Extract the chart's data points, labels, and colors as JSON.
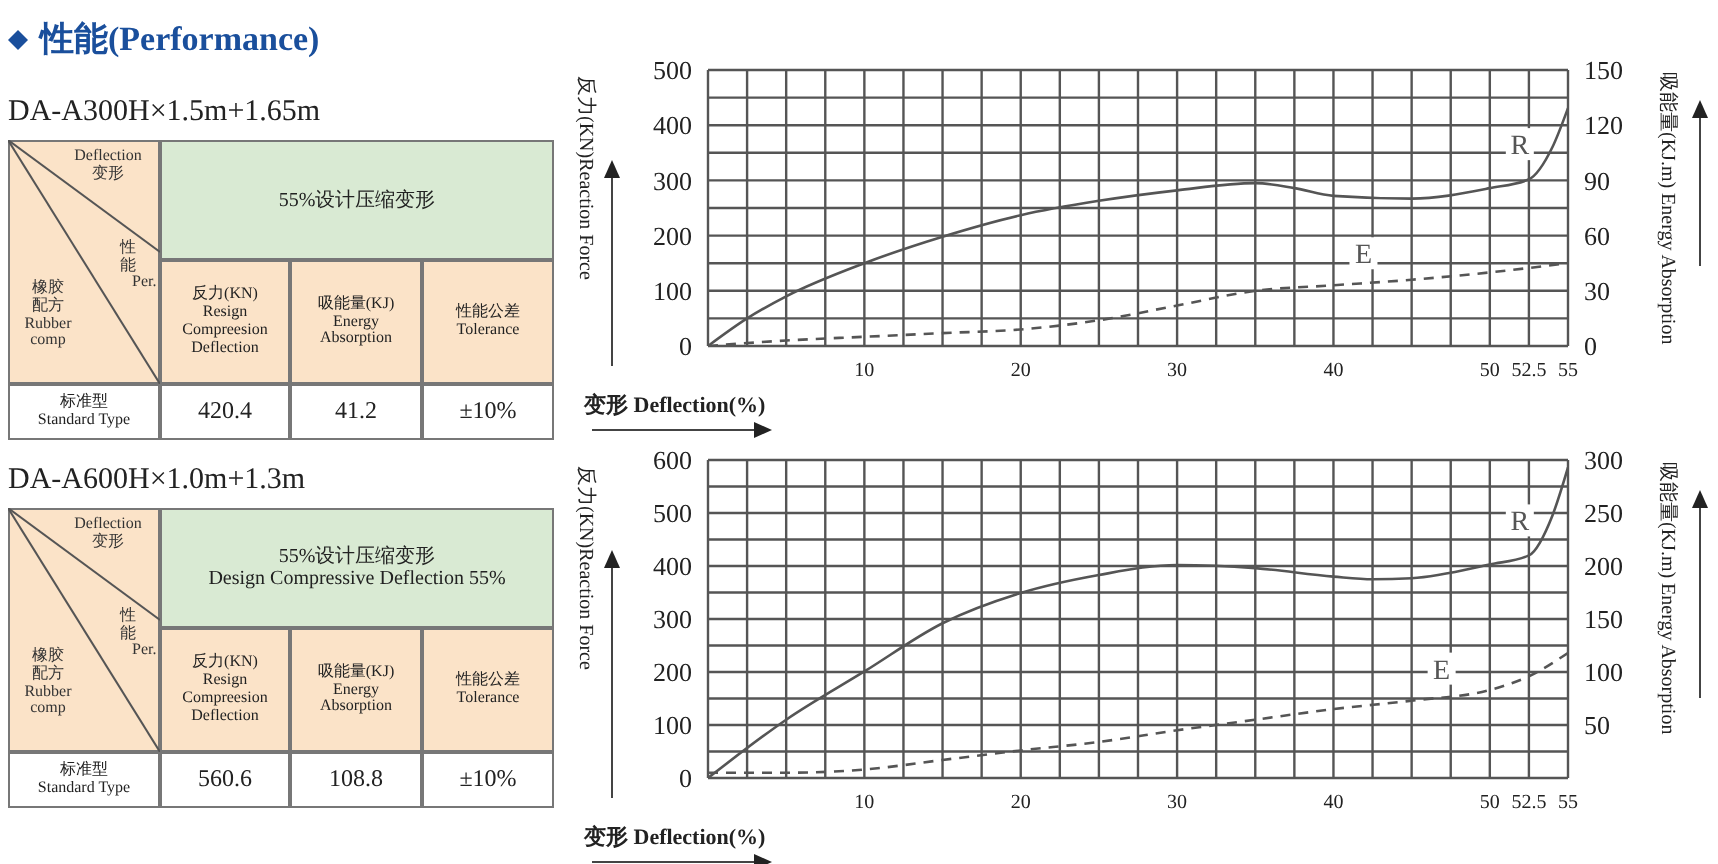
{
  "chart_data": [
    {
      "type": "other",
      "title": "性能(Performance)",
      "subtitle": "DA-A300H×1.5m+1.65m",
      "annotations": [
        "Deflection\n变形",
        "性能",
        "Per.",
        "橡胶配方\nRubber\ncomp",
        "55%设计压缩变形",
        "反力(KN)\nResign\nCompreesion\nDeflection",
        "吸能量(KJ)\nEnergy\nAbsorption",
        "性能公差\nTolerance",
        "标准型\nStandard Type",
        "420.4",
        "41.2",
        "±10%"
      ]
    },
    {
      "type": "line",
      "xlabel": "变形 Deflection(%)",
      "ylabel": "反力(KN)Reaction Force",
      "y2label": "吸能量(KJ.m)  Energy Absorption",
      "xlim": [
        0,
        55
      ],
      "xticks": [
        {
          "value": 0,
          "label": null
        },
        {
          "value": 2.5,
          "label": null
        },
        {
          "value": 5,
          "label": null
        },
        {
          "value": 7.5,
          "label": null
        },
        10,
        {
          "value": 12.5,
          "label": null
        },
        {
          "value": 15,
          "label": null
        },
        {
          "value": 17.5,
          "label": null
        },
        20,
        {
          "value": 22.5,
          "label": null
        },
        {
          "value": 25,
          "label": null
        },
        {
          "value": 27.5,
          "label": null
        },
        30,
        {
          "value": 32.5,
          "label": null
        },
        {
          "value": 35,
          "label": null
        },
        {
          "value": 37.5,
          "label": null
        },
        40,
        {
          "value": 42.5,
          "label": null
        },
        {
          "value": 45,
          "label": null
        },
        {
          "value": 47.5,
          "label": null
        },
        50,
        52.5,
        55
      ],
      "ylim": [
        0,
        500
      ],
      "yticks": [
        0,
        {
          "value": 50,
          "label": null
        },
        100,
        {
          "value": 150,
          "label": null
        },
        200,
        {
          "value": 250,
          "label": null
        },
        300,
        {
          "value": 350,
          "label": null
        },
        400,
        {
          "value": 450,
          "label": null
        },
        500
      ],
      "y2lim": [
        0,
        150
      ],
      "y2ticks": [
        0,
        30,
        60,
        90,
        120,
        150
      ],
      "grid": true,
      "series": [
        {
          "name": "R",
          "type": "line",
          "color": "#555555",
          "line_style": "solid",
          "x": [
            0,
            2.5,
            5,
            10,
            15,
            20,
            25,
            30,
            35,
            37.5,
            40,
            45,
            50,
            52.5,
            54,
            55
          ],
          "values": [
            0,
            50,
            90,
            150,
            198,
            237,
            263,
            282,
            295,
            286,
            272,
            267,
            286,
            302,
            360,
            431
          ]
        },
        {
          "name": "E",
          "type": "line",
          "axis": "y2",
          "color": "#555555",
          "line_style": "dashed",
          "x": [
            0,
            5,
            10,
            15,
            20,
            25,
            30,
            35,
            40,
            45,
            50,
            55
          ],
          "values": [
            0,
            3,
            5,
            7,
            9,
            14,
            22,
            30,
            33,
            36,
            40,
            45
          ]
        }
      ]
    },
    {
      "type": "other",
      "subtitle": "DA-A600H×1.0m+1.3m",
      "annotations": [
        "Deflection\n变形",
        "性能",
        "Per.",
        "橡胶配方\nRubber\ncomp",
        "55%设计压缩变形\nDesign Compressive Deflection 55%",
        "反力(KN)\nResign\nCompreesion\nDeflection",
        "吸能量(KJ)\nEnergy\nAbsorption",
        "性能公差\nTolerance",
        "标准型\nStandard Type",
        "560.6",
        "108.8",
        "±10%"
      ]
    },
    {
      "type": "line",
      "xlabel": "变形 Deflection(%)",
      "ylabel": "反力(KN)Reaction Force",
      "y2label": "吸能量(KJ.m)  Energy Absorption",
      "xlim": [
        0,
        55
      ],
      "xticks": [
        {
          "value": 0,
          "label": null
        },
        {
          "value": 2.5,
          "label": null
        },
        {
          "value": 5,
          "label": null
        },
        {
          "value": 7.5,
          "label": null
        },
        10,
        {
          "value": 12.5,
          "label": null
        },
        {
          "value": 15,
          "label": null
        },
        {
          "value": 17.5,
          "label": null
        },
        20,
        {
          "value": 22.5,
          "label": null
        },
        {
          "value": 25,
          "label": null
        },
        {
          "value": 27.5,
          "label": null
        },
        30,
        {
          "value": 32.5,
          "label": null
        },
        {
          "value": 35,
          "label": null
        },
        {
          "value": 37.5,
          "label": null
        },
        40,
        {
          "value": 42.5,
          "label": null
        },
        {
          "value": 45,
          "label": null
        },
        {
          "value": 47.5,
          "label": null
        },
        50,
        52.5,
        55
      ],
      "ylim": [
        0,
        600
      ],
      "yticks": [
        0,
        {
          "value": 50,
          "label": null
        },
        100,
        {
          "value": 150,
          "label": null
        },
        200,
        {
          "value": 250,
          "label": null
        },
        300,
        {
          "value": 350,
          "label": null
        },
        400,
        {
          "value": 450,
          "label": null
        },
        500,
        {
          "value": 550,
          "label": null
        },
        600
      ],
      "y2lim": [
        0,
        300
      ],
      "y2ticks": [
        {
          "value": 0,
          "label": null
        },
        50,
        100,
        150,
        200,
        250,
        300
      ],
      "grid": true,
      "series": [
        {
          "name": "R",
          "type": "line",
          "color": "#555555",
          "line_style": "solid",
          "x": [
            0,
            5,
            10,
            15,
            20,
            25,
            30,
            35,
            40,
            42.5,
            45,
            50,
            52.5,
            54,
            55
          ],
          "values": [
            0,
            110,
            201,
            292,
            349,
            383,
            402,
            396,
            380,
            375,
            377,
            403,
            420,
            495,
            586
          ]
        },
        {
          "name": "E",
          "type": "line",
          "axis": "y2",
          "color": "#555555",
          "line_style": "dashed",
          "x": [
            0,
            5,
            10,
            15,
            20,
            25,
            30,
            35,
            40,
            45,
            50,
            52.5,
            55
          ],
          "values": [
            5,
            5,
            8,
            17,
            26,
            34,
            45,
            55,
            65,
            73,
            83,
            96,
            118
          ]
        }
      ]
    }
  ]
}
